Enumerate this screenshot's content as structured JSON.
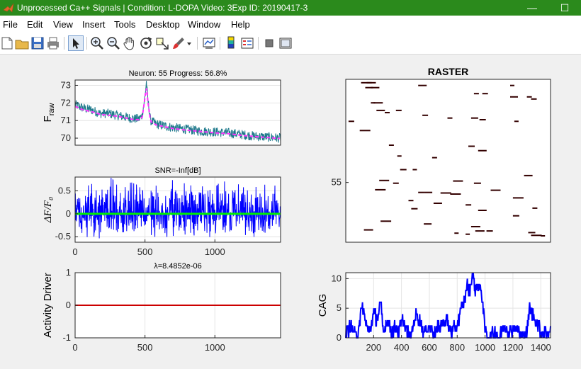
{
  "window": {
    "title": "Unprocessed Ca++ Signals | Condition: L-DOPA Video: 3Exp ID: 20190417-3",
    "minimize_glyph": "—",
    "maximize_glyph": "☐"
  },
  "menu": [
    "File",
    "Edit",
    "View",
    "Insert",
    "Tools",
    "Desktop",
    "Window",
    "Help"
  ],
  "toolbar_icons": [
    "new-file-icon",
    "open-folder-icon",
    "save-icon",
    "print-icon",
    "pointer-icon",
    "zoom-in-icon",
    "zoom-out-icon",
    "pan-hand-icon",
    "rotate-3d-icon",
    "data-cursor-icon",
    "brush-icon",
    "brush-dropdown-icon",
    "link-plot-icon",
    "insert-colorbar-icon",
    "insert-legend-icon",
    "hide-plot-tools-icon",
    "show-plot-tools-icon"
  ],
  "colors": {
    "titlebar": "#2b8a1c",
    "raw_trace": "#1f7a8c",
    "raw_fit": "#ff33ff",
    "dff_trace": "#0000ff",
    "dff_baseline": "#00ee00",
    "driver": "#cc0000",
    "raster_event": "#330000",
    "cag": "#0000ff"
  },
  "chart_data": [
    {
      "id": "raw",
      "type": "line",
      "title": "Neuron: 55 Progress: 56.8%",
      "xlabel": "",
      "ylabel": "F",
      "ylabel_sub": "raw",
      "xlim": [
        0,
        1470
      ],
      "ylim": [
        69.6,
        73.3
      ],
      "yticks": [
        70,
        71,
        72,
        73
      ],
      "xticks": [],
      "grid": true,
      "series": [
        {
          "role": "trace",
          "x": [
            0,
            60,
            120,
            180,
            240,
            300,
            360,
            420,
            460,
            480,
            500,
            510,
            520,
            540,
            580,
            640,
            700,
            800,
            900,
            1000,
            1100,
            1200,
            1300,
            1400,
            1470
          ],
          "values": [
            71.9,
            71.7,
            71.6,
            71.4,
            71.4,
            71.3,
            71.2,
            71.1,
            71.1,
            71.3,
            72.4,
            73.2,
            72.2,
            71.0,
            70.8,
            70.7,
            70.6,
            70.5,
            70.4,
            70.35,
            70.3,
            70.2,
            70.1,
            70.05,
            70.0
          ]
        },
        {
          "role": "fit",
          "x": [
            0,
            60,
            120,
            180,
            240,
            300,
            360,
            420,
            460,
            480,
            500,
            510,
            520,
            540,
            580,
            640,
            700,
            800,
            900,
            1000,
            1100,
            1200,
            1300,
            1400,
            1470
          ],
          "values": [
            71.8,
            71.6,
            71.5,
            71.35,
            71.3,
            71.25,
            71.15,
            71.05,
            71.05,
            71.2,
            72.3,
            73.0,
            72.1,
            70.95,
            70.75,
            70.65,
            70.55,
            70.45,
            70.38,
            70.3,
            70.25,
            70.15,
            70.08,
            70.02,
            69.98
          ]
        }
      ]
    },
    {
      "id": "dff",
      "type": "line",
      "title": "SNR=-Inf[dB]",
      "xlabel": "",
      "ylabel": "ΔF/F₀",
      "xlim": [
        0,
        1470
      ],
      "ylim": [
        -0.62,
        0.8
      ],
      "yticks": [
        -0.5,
        0,
        0.5
      ],
      "xticks": [
        0,
        500,
        1000
      ],
      "grid": true,
      "series": [
        {
          "role": "trace",
          "x": [
            0,
            50,
            100,
            150,
            200,
            250,
            300,
            350,
            400,
            450,
            500,
            550,
            600,
            650,
            700,
            750,
            800,
            850,
            900,
            950,
            1000,
            1050,
            1100,
            1150,
            1200,
            1250,
            1300,
            1350,
            1400,
            1450,
            1470
          ],
          "envelope_high": [
            0.35,
            0.45,
            0.5,
            0.55,
            0.4,
            0.65,
            0.5,
            0.45,
            0.55,
            0.5,
            0.35,
            0.55,
            0.45,
            0.4,
            0.6,
            0.5,
            0.55,
            0.45,
            0.5,
            0.4,
            0.45,
            0.6,
            0.5,
            0.55,
            0.45,
            0.6,
            0.45,
            0.5,
            0.55,
            0.45,
            0.4
          ],
          "envelope_low": [
            -0.3,
            -0.35,
            -0.45,
            -0.4,
            -0.5,
            -0.35,
            -0.45,
            -0.4,
            -0.35,
            -0.45,
            -0.25,
            -0.4,
            -0.45,
            -0.55,
            -0.4,
            -0.45,
            -0.35,
            -0.5,
            -0.4,
            -0.45,
            -0.35,
            -0.4,
            -0.45,
            -0.5,
            -0.35,
            -0.45,
            -0.4,
            -0.45,
            -0.35,
            -0.4,
            -0.3
          ]
        },
        {
          "role": "baseline",
          "x": [
            0,
            1470
          ],
          "values": [
            0,
            0
          ]
        }
      ]
    },
    {
      "id": "driver",
      "type": "line",
      "title": "λ=8.4852e-06",
      "xlabel": "",
      "ylabel": "Activity Driver",
      "xlim": [
        0,
        1470
      ],
      "ylim": [
        -1,
        1
      ],
      "yticks": [
        -1,
        0,
        1
      ],
      "xticks": [
        0,
        500,
        1000
      ],
      "grid": true,
      "series": [
        {
          "role": "driver",
          "x": [
            0,
            1470
          ],
          "values": [
            0,
            0
          ]
        }
      ]
    },
    {
      "id": "raster",
      "type": "scatter",
      "title": "RASTER",
      "xlabel": "",
      "ylabel": "",
      "xlim": [
        0,
        1470
      ],
      "ylim": [
        44,
        74
      ],
      "yticks": [
        55
      ],
      "xticks": [],
      "grid": false,
      "events": [
        [
          110,
          73.5
        ],
        [
          150,
          73.5
        ],
        [
          140,
          72.6
        ],
        [
          180,
          72.6
        ],
        [
          520,
          73.0
        ],
        [
          920,
          71.5
        ],
        [
          980,
          71.5
        ],
        [
          1180,
          73.0
        ],
        [
          1300,
          70.9
        ],
        [
          1180,
          70.9
        ],
        [
          1330,
          70.5
        ],
        [
          180,
          69.8
        ],
        [
          200,
          69.8
        ],
        [
          220,
          68.4
        ],
        [
          360,
          68.4
        ],
        [
          280,
          68.0
        ],
        [
          550,
          67.5
        ],
        [
          730,
          67.0
        ],
        [
          900,
          67.0
        ],
        [
          960,
          66.7
        ],
        [
          1210,
          66.4
        ],
        [
          20,
          66.4
        ],
        [
          100,
          64.7
        ],
        [
          310,
          62.0
        ],
        [
          370,
          60.0
        ],
        [
          620,
          59.7
        ],
        [
          880,
          61.8
        ],
        [
          950,
          61.0
        ],
        [
          390,
          57.5
        ],
        [
          480,
          57.5
        ],
        [
          240,
          55.5
        ],
        [
          340,
          55.0
        ],
        [
          770,
          55.4
        ],
        [
          920,
          55.0
        ],
        [
          1280,
          56.4
        ],
        [
          210,
          53.8
        ],
        [
          520,
          53.3
        ],
        [
          560,
          53.3
        ],
        [
          680,
          53.2
        ],
        [
          750,
          53.0
        ],
        [
          1040,
          53.7
        ],
        [
          1200,
          52.3
        ],
        [
          450,
          51.8
        ],
        [
          630,
          51.3
        ],
        [
          860,
          51.0
        ],
        [
          1340,
          50.4
        ],
        [
          470,
          50.3
        ],
        [
          950,
          50.0
        ],
        [
          1200,
          49.0
        ],
        [
          250,
          48.0
        ],
        [
          560,
          47.5
        ],
        [
          900,
          47.0
        ],
        [
          930,
          46.2
        ],
        [
          1010,
          46.2
        ],
        [
          130,
          46.4
        ],
        [
          780,
          45.8
        ],
        [
          860,
          45.6
        ],
        [
          1310,
          45.9
        ],
        [
          1400,
          45.3
        ],
        [
          1330,
          45.4
        ]
      ]
    },
    {
      "id": "cag",
      "type": "line",
      "title": "",
      "xlabel": "",
      "ylabel": "CAG",
      "xlim": [
        0,
        1470
      ],
      "ylim": [
        0,
        11
      ],
      "yticks": [
        0,
        5,
        10
      ],
      "xticks": [
        200,
        400,
        600,
        800,
        1000,
        1200,
        1400
      ],
      "grid": true,
      "series": [
        {
          "role": "cag",
          "x": [
            0,
            40,
            80,
            100,
            120,
            150,
            170,
            200,
            230,
            250,
            270,
            300,
            330,
            360,
            380,
            410,
            440,
            470,
            500,
            530,
            560,
            600,
            640,
            680,
            720,
            760,
            800,
            830,
            850,
            870,
            890,
            910,
            930,
            950,
            980,
            1000,
            1040,
            1070,
            1100,
            1140,
            1180,
            1220,
            1260,
            1300,
            1320,
            1340,
            1360,
            1400,
            1440,
            1470
          ],
          "values": [
            1,
            2,
            0,
            3,
            5,
            2,
            1,
            4,
            3,
            6,
            1,
            3,
            1,
            2,
            1,
            3,
            1,
            0,
            4,
            3,
            1,
            2,
            1,
            2,
            3,
            1,
            2,
            5,
            6,
            9,
            8,
            11,
            8,
            9,
            7,
            1,
            0,
            1,
            0,
            2,
            1,
            2,
            0,
            1,
            5,
            4,
            3,
            1,
            1,
            1
          ]
        }
      ]
    }
  ]
}
